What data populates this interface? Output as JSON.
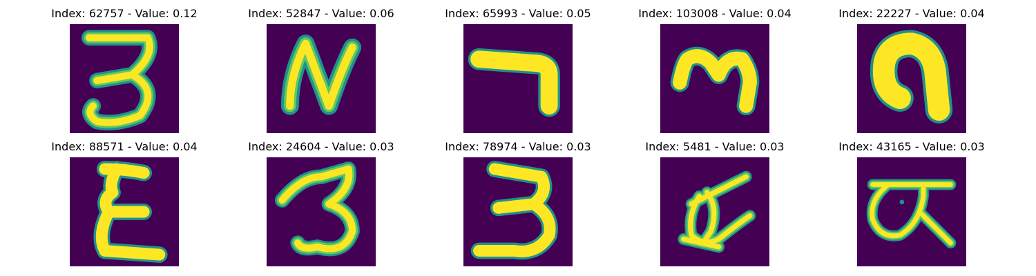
{
  "colors": {
    "background": "#440154",
    "stroke_edge": "#21918c",
    "stroke_mid": "#5ec962",
    "stroke_core": "#fde725"
  },
  "panels": [
    {
      "title": "Index: 62757 - Value: 0.12",
      "glyph": "digit-3-image"
    },
    {
      "title": "Index: 52847 - Value: 0.06",
      "glyph": "letter-n-image"
    },
    {
      "title": "Index: 65993 - Value: 0.05",
      "glyph": "hook-stroke-image"
    },
    {
      "title": "Index: 103008 - Value: 0.04",
      "glyph": "letter-m-image"
    },
    {
      "title": "Index: 22227 - Value: 0.04",
      "glyph": "thick-arch-image"
    },
    {
      "title": "Index: 88571 - Value: 0.04",
      "glyph": "letter-e-image"
    },
    {
      "title": "Index: 24604 - Value: 0.03",
      "glyph": "digit-3-image"
    },
    {
      "title": "Index: 78974 - Value: 0.03",
      "glyph": "digit-3-image"
    },
    {
      "title": "Index: 5481 - Value: 0.03",
      "glyph": "scribble-glyph-image"
    },
    {
      "title": "Index: 43165 - Value: 0.03",
      "glyph": "alpha-glyph-image"
    }
  ]
}
